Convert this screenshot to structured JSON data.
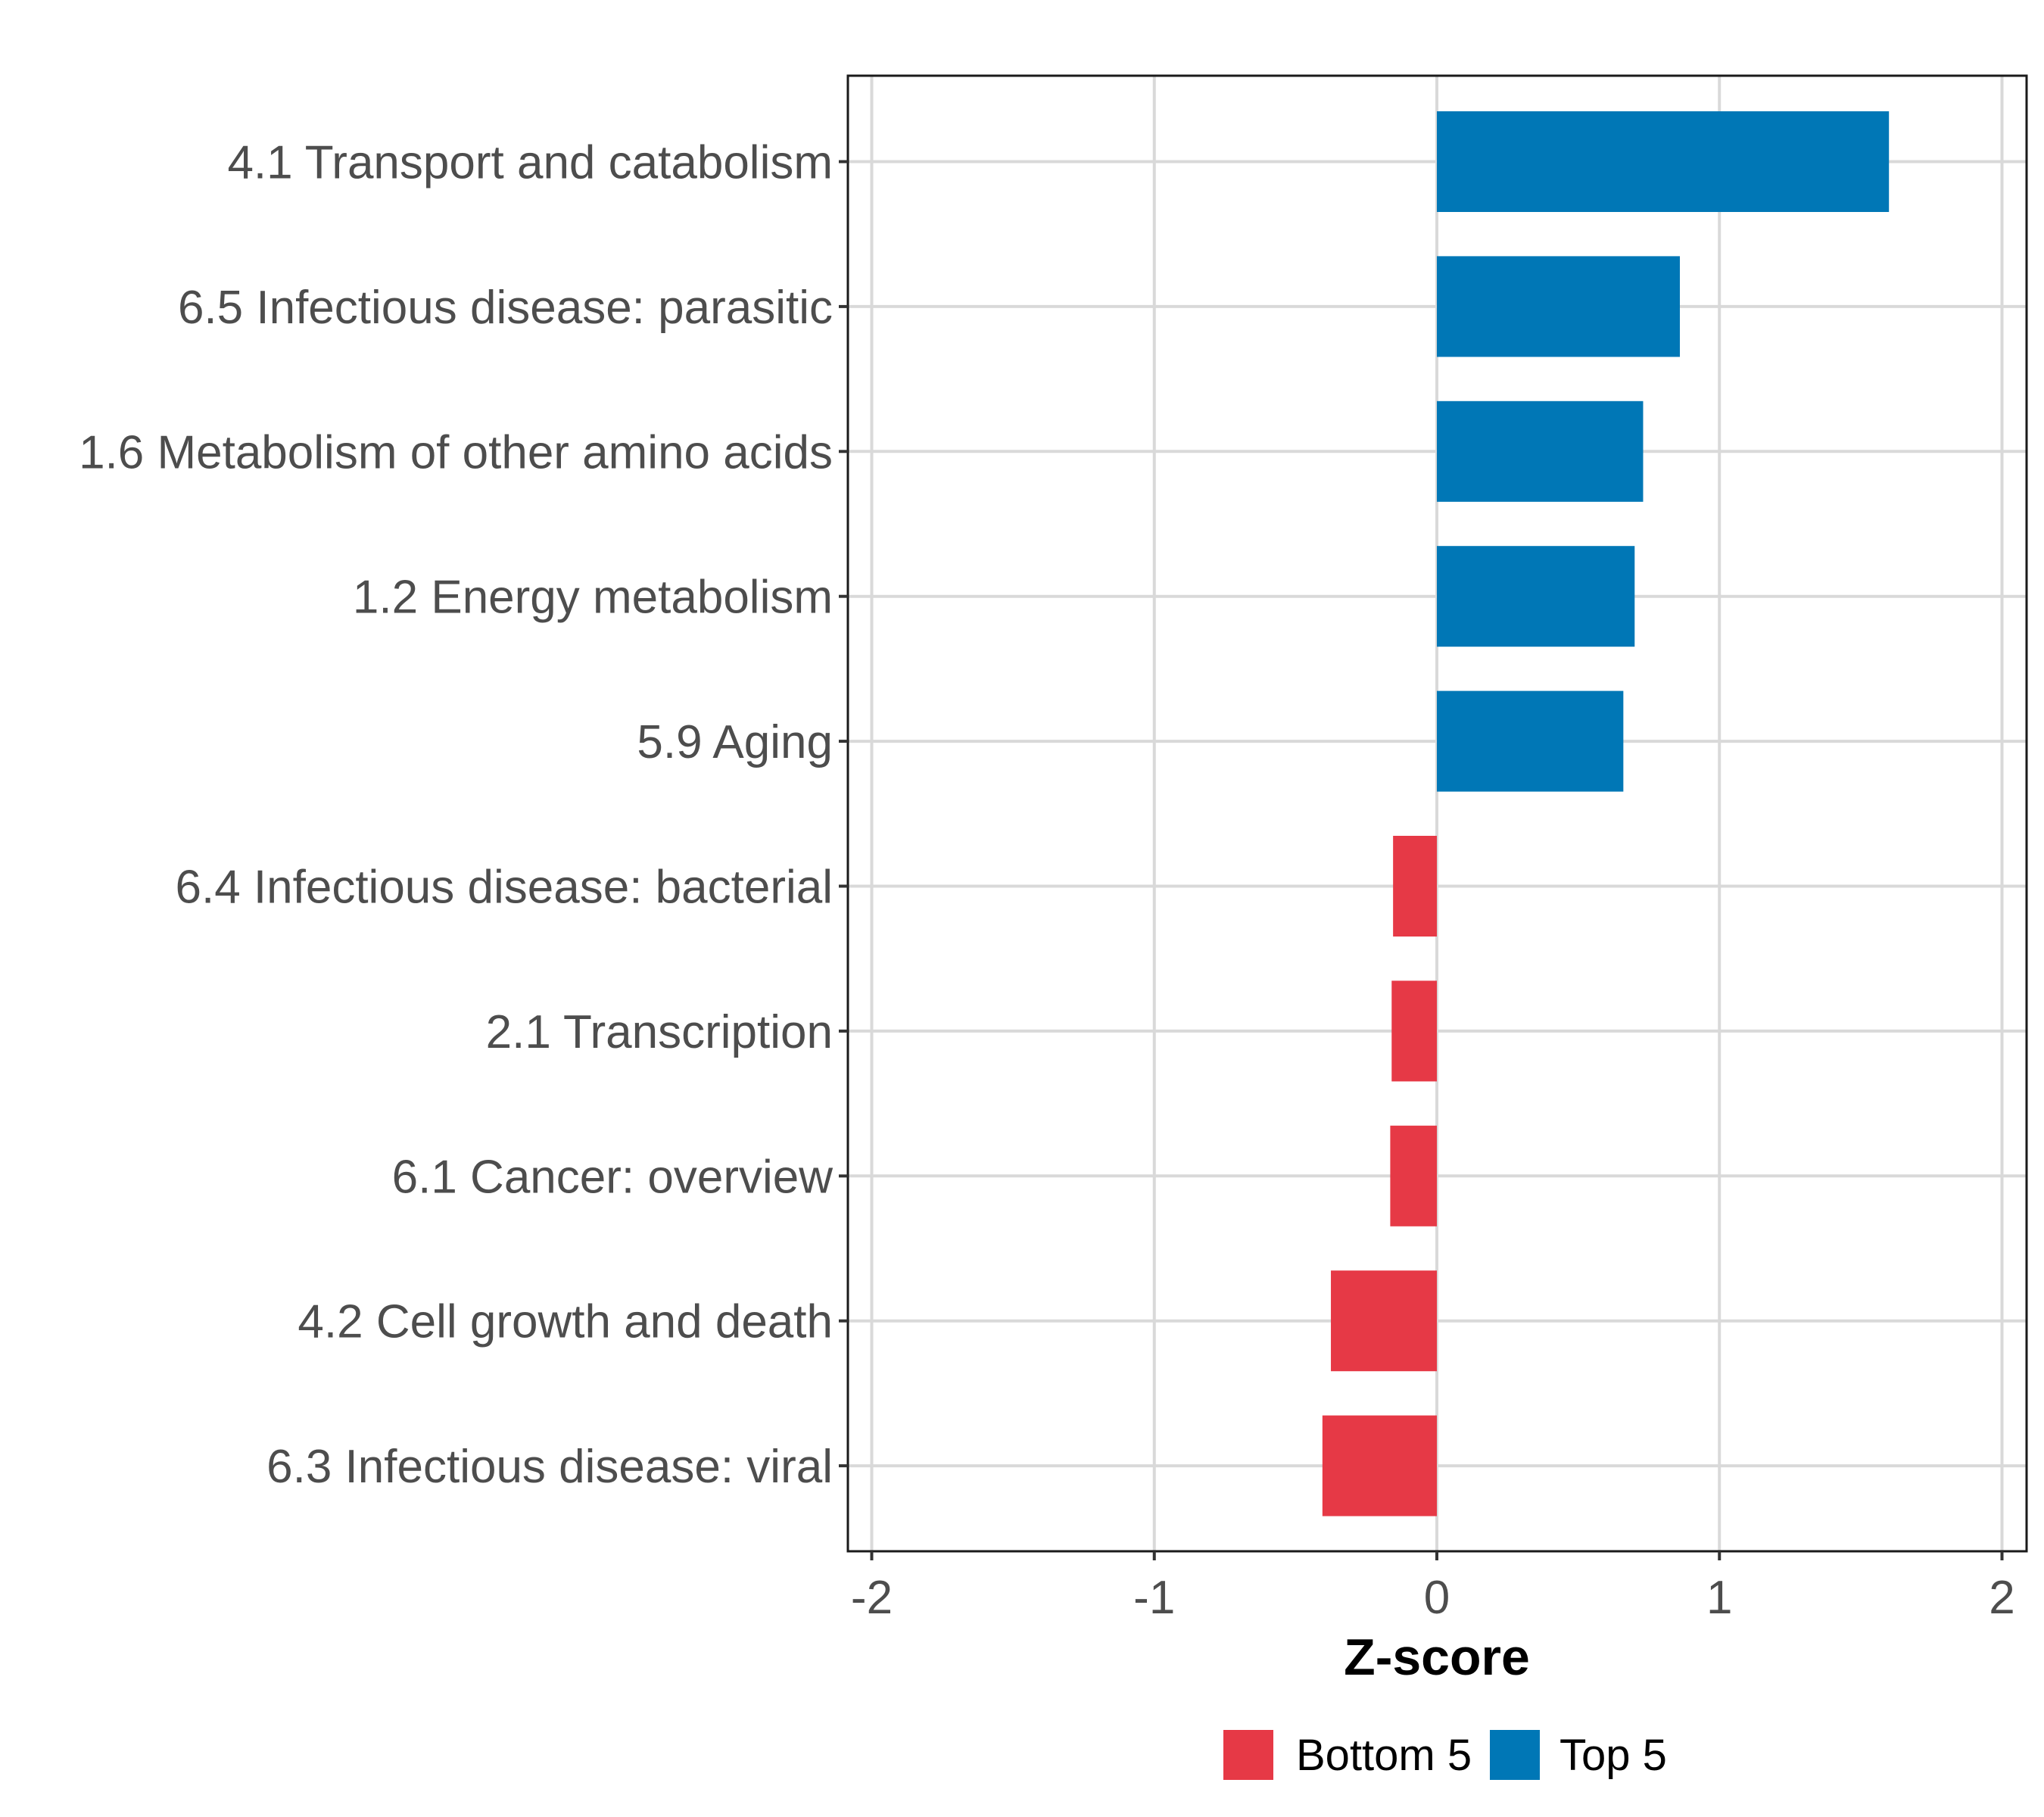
{
  "chart_data": {
    "type": "bar",
    "orientation": "horizontal",
    "title": "",
    "xlabel": "Z-score",
    "ylabel": "",
    "xlim": [
      -2.08,
      2.08
    ],
    "xticks": [
      -2,
      -1,
      0,
      1,
      2
    ],
    "xtick_labels": [
      "-2",
      "-1",
      "0",
      "1",
      "2"
    ],
    "grid": true,
    "legend_position": "bottom",
    "categories": [
      "4.1 Transport and catabolism",
      "6.5 Infectious disease: parasitic",
      "1.6 Metabolism of other amino acids",
      "1.2 Energy metabolism",
      "5.9 Aging",
      "6.4 Infectious disease: bacterial",
      "2.1 Transcription",
      "6.1 Cancer: overview",
      "4.2 Cell growth and death",
      "6.3 Infectious disease: viral"
    ],
    "values": [
      1.6,
      0.86,
      0.73,
      0.7,
      0.66,
      -0.155,
      -0.16,
      -0.165,
      -0.375,
      -0.405
    ],
    "groups": [
      "Top 5",
      "Top 5",
      "Top 5",
      "Top 5",
      "Top 5",
      "Bottom 5",
      "Bottom 5",
      "Bottom 5",
      "Bottom 5",
      "Bottom 5"
    ],
    "legend": [
      {
        "name": "Bottom 5",
        "color": "#E63946"
      },
      {
        "name": "Top 5",
        "color": "#0077B6"
      }
    ]
  },
  "colors": {
    "top": "#0077B6",
    "bottom": "#E63946",
    "grid": "#d9d9d9",
    "axis_text": "#4d4d4d"
  }
}
